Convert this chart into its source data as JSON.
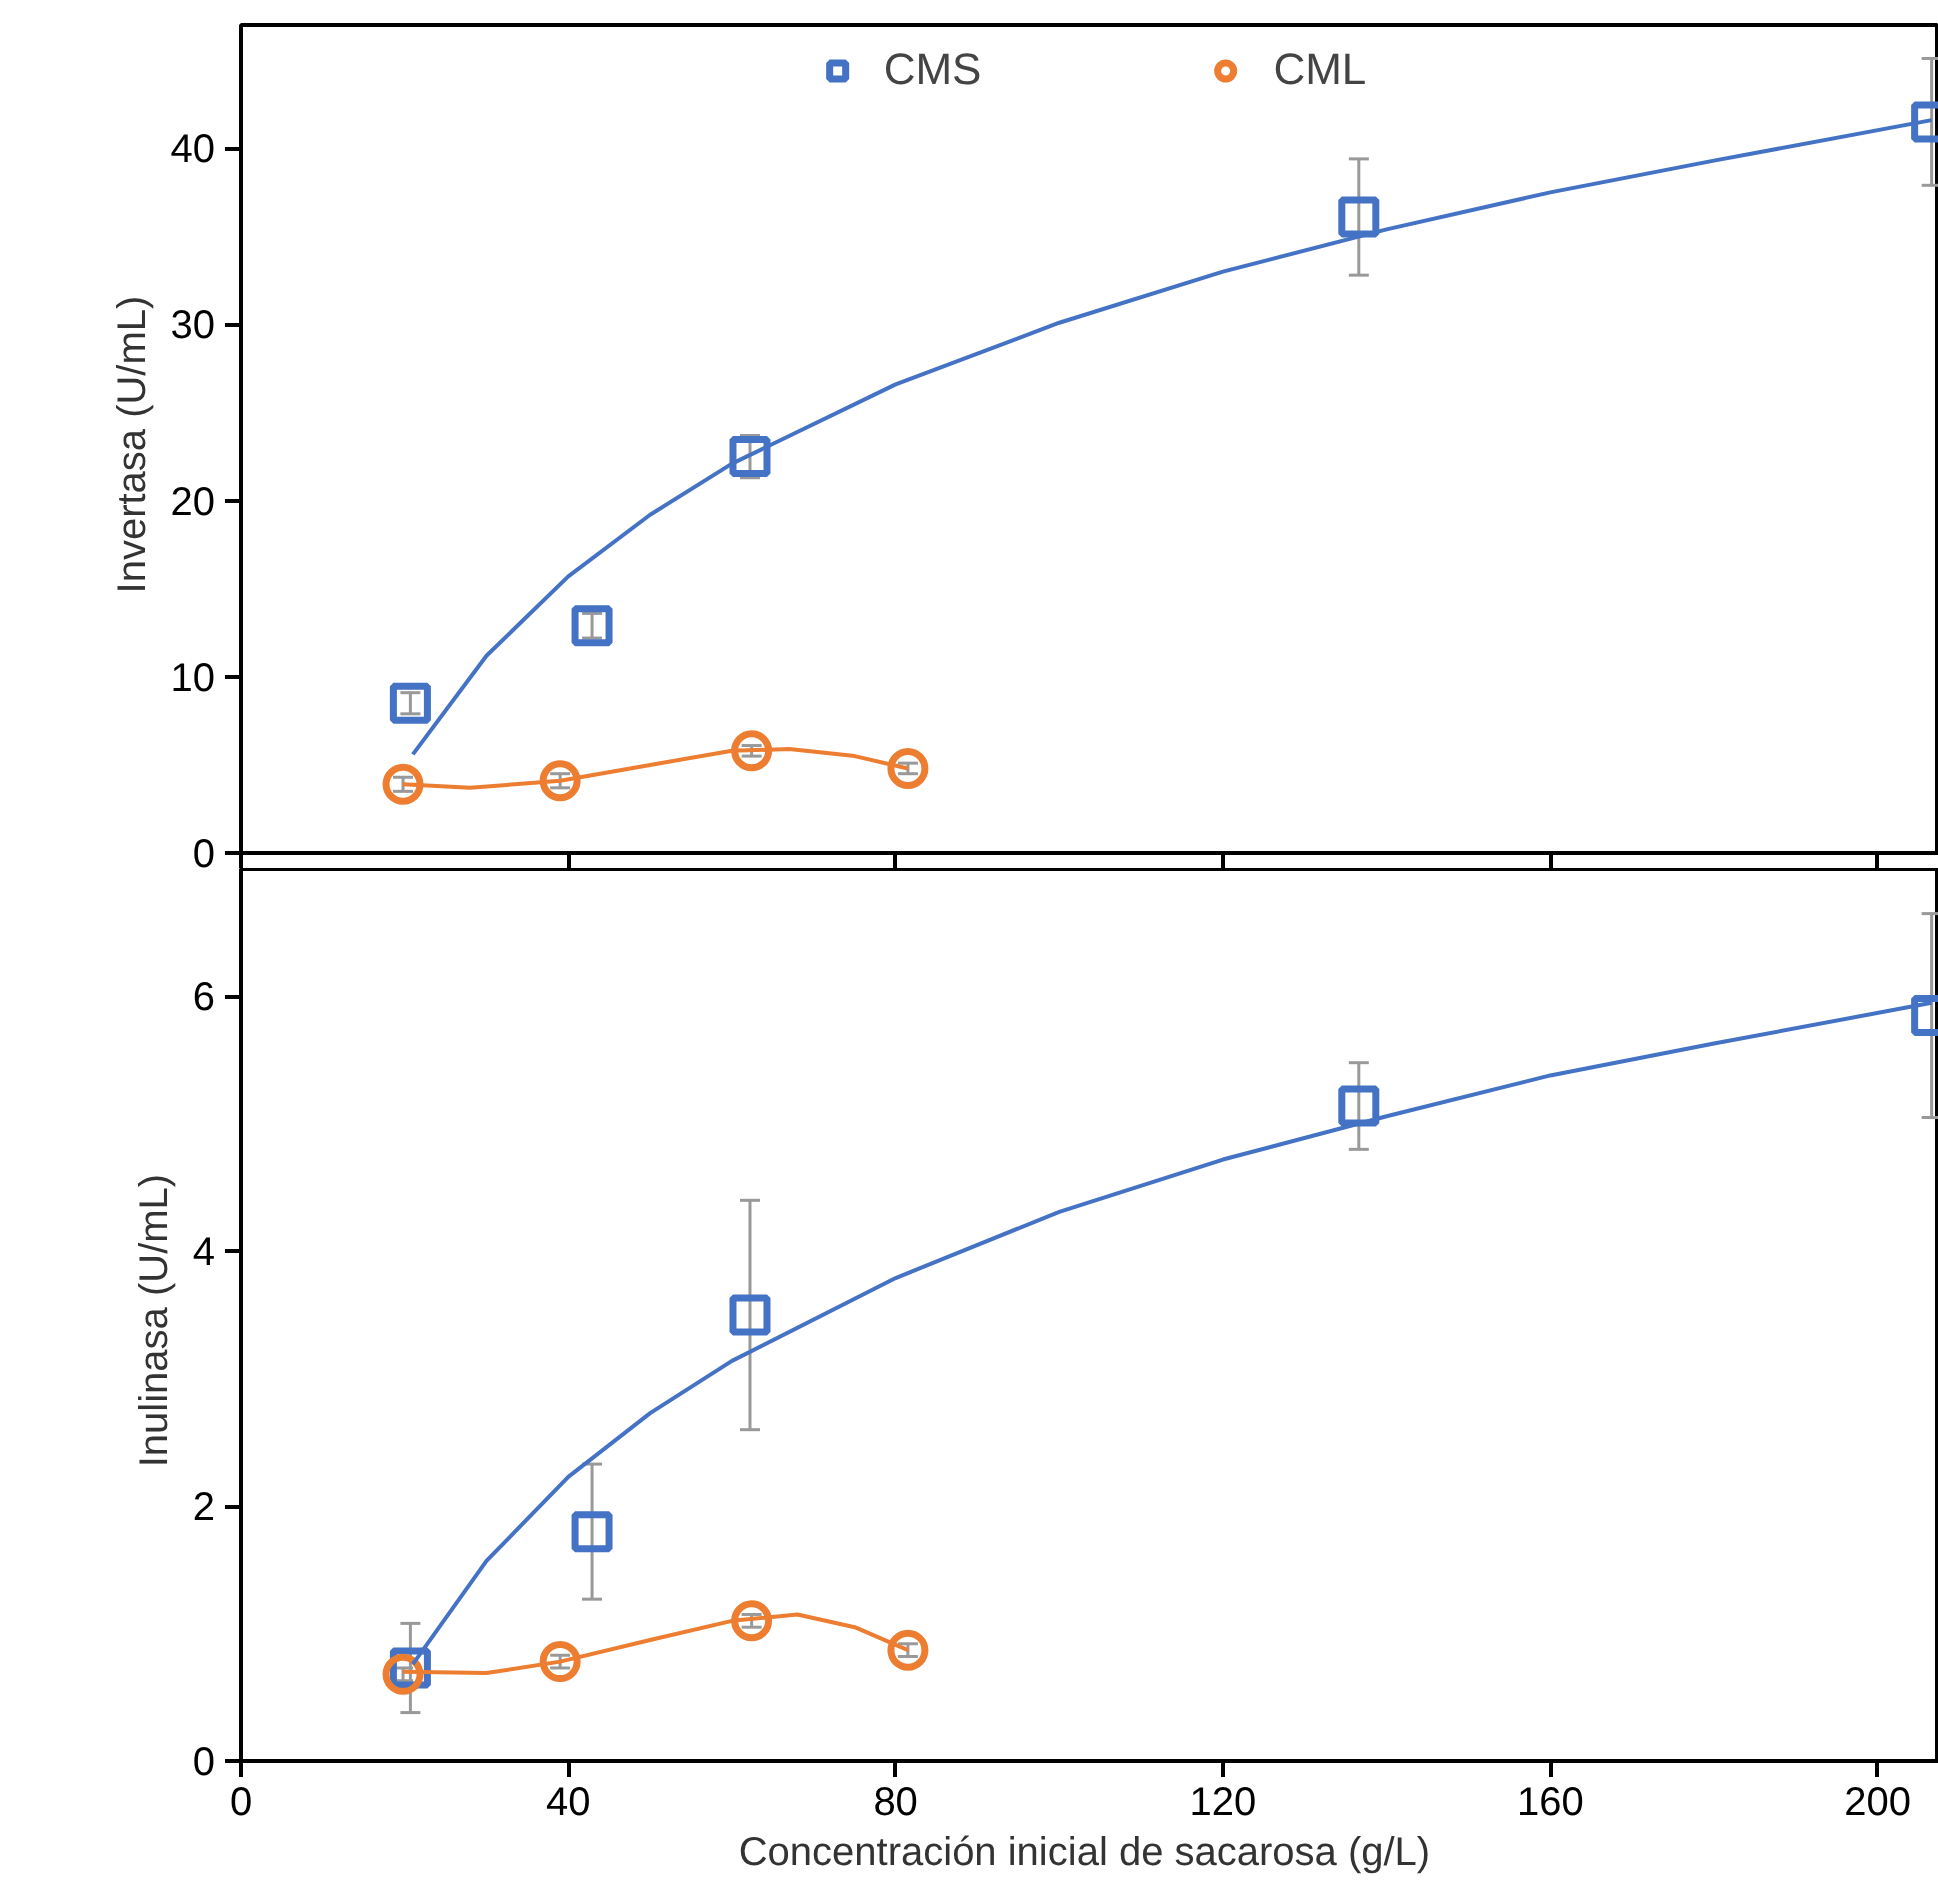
{
  "chart_data": [
    {
      "type": "scatter",
      "ylabel": "Invertasa  (U/mL)",
      "xlim": [
        0,
        207.5
      ],
      "xticks": [
        0,
        40,
        80,
        120,
        160,
        200
      ],
      "ylim": [
        0,
        47
      ],
      "yticks": [
        0,
        10,
        20,
        30,
        40
      ],
      "tick_labels": "y",
      "legend": "top",
      "grid": false,
      "series": [
        {
          "name": "CMS",
          "color": "#4472c4",
          "marker": "square",
          "x": [
            20.7,
            42.9,
            62.2,
            136.6,
            206.6
          ],
          "values": [
            8.5,
            12.9,
            22.5,
            36.1,
            41.5
          ],
          "errors": [
            0.6,
            0.7,
            1.2,
            3.3,
            3.6
          ]
        },
        {
          "name": "CML",
          "color": "#ed7d31",
          "marker": "circle",
          "x": [
            19.8,
            39,
            62.4,
            81.5
          ],
          "values": [
            3.9,
            4.1,
            5.8,
            4.8
          ],
          "errors": [
            0.4,
            0.4,
            0.3,
            0.3
          ]
        },
        {
          "type": "line",
          "color": "#4472c4",
          "marker": "none",
          "x": [
            21,
            30,
            40,
            50,
            60,
            80,
            100,
            120,
            140,
            160,
            180,
            206.6
          ],
          "values": [
            5.6,
            11.2,
            15.7,
            19.2,
            22.1,
            26.6,
            30.1,
            33.0,
            35.4,
            37.5,
            39.3,
            41.6
          ]
        },
        {
          "type": "line",
          "color": "#ed7d31",
          "marker": "none",
          "x": [
            19.8,
            28,
            39,
            50,
            60,
            67,
            75,
            81.5
          ],
          "values": [
            3.9,
            3.7,
            4.1,
            5.0,
            5.8,
            5.9,
            5.5,
            4.8
          ]
        }
      ]
    },
    {
      "type": "scatter",
      "xlabel": "Concentración inicial de sacarosa  (g/L)",
      "ylabel": "Inulinasa  (U/mL)",
      "xlim": [
        0,
        207.5
      ],
      "xticks": [
        0,
        40,
        80,
        120,
        160,
        200
      ],
      "ylim": [
        0,
        7
      ],
      "yticks": [
        0,
        2,
        4,
        6
      ],
      "legend": false,
      "grid": false,
      "series": [
        {
          "color": "#4472c4",
          "marker": "square",
          "x": [
            20.7,
            42.9,
            62.2,
            136.6,
            206.6
          ],
          "values": [
            0.73,
            1.8,
            3.5,
            5.14,
            5.85
          ],
          "errors": [
            0.35,
            0.53,
            0.9,
            0.34,
            0.8
          ]
        },
        {
          "color": "#ed7d31",
          "marker": "circle",
          "x": [
            19.8,
            39,
            62.4,
            81.5
          ],
          "values": [
            0.68,
            0.78,
            1.1,
            0.87
          ],
          "errors": [
            0.05,
            0.05,
            0.05,
            0.05
          ]
        },
        {
          "type": "line",
          "color": "#4472c4",
          "marker": "none",
          "x": [
            21,
            30,
            40,
            50,
            60,
            80,
            100,
            120,
            140,
            160,
            180,
            206.6
          ],
          "values": [
            0.76,
            1.57,
            2.23,
            2.73,
            3.14,
            3.79,
            4.31,
            4.72,
            5.06,
            5.38,
            5.63,
            5.95
          ]
        },
        {
          "type": "line",
          "color": "#ed7d31",
          "marker": "none",
          "x": [
            19.8,
            30,
            39,
            50,
            60,
            68,
            75,
            81.5
          ],
          "values": [
            0.7,
            0.69,
            0.78,
            0.95,
            1.1,
            1.15,
            1.05,
            0.87
          ]
        }
      ]
    }
  ]
}
